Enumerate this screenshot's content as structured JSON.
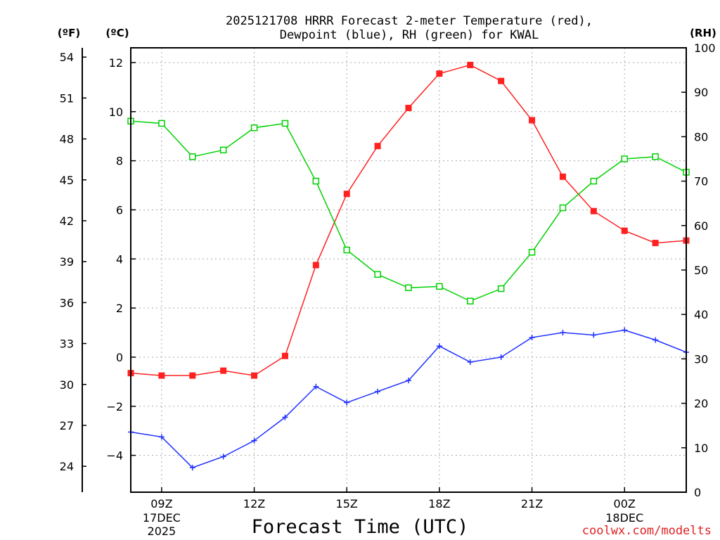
{
  "chart_data": {
    "type": "line",
    "title_line1": "2025121708 HRRR Forecast 2-meter Temperature (red),",
    "title_line2": "Dewpoint (blue), RH (green) for KWAL",
    "xlabel": "Forecast Time (UTC)",
    "unit_f": "(ºF)",
    "unit_c": "(ºC)",
    "unit_rh": "(RH)",
    "watermark": "coolwx.com/modelts",
    "x_hours": [
      8,
      9,
      10,
      11,
      12,
      13,
      14,
      15,
      16,
      17,
      18,
      19,
      20,
      21,
      22,
      23,
      24,
      25,
      26
    ],
    "x_range": [
      8,
      26
    ],
    "x_ticks": [
      {
        "hour": 9,
        "label": "09Z",
        "sub1": "17DEC",
        "sub2": "2025"
      },
      {
        "hour": 12,
        "label": "12Z",
        "sub1": "",
        "sub2": ""
      },
      {
        "hour": 15,
        "label": "15Z",
        "sub1": "",
        "sub2": ""
      },
      {
        "hour": 18,
        "label": "18Z",
        "sub1": "",
        "sub2": ""
      },
      {
        "hour": 21,
        "label": "21Z",
        "sub1": "",
        "sub2": ""
      },
      {
        "hour": 24,
        "label": "00Z",
        "sub1": "18DEC",
        "sub2": ""
      }
    ],
    "celsius_range": [
      -5.5,
      12.6
    ],
    "celsius_ticks": [
      "−4",
      "−2",
      "0",
      "2",
      "4",
      "6",
      "8",
      "10",
      "12"
    ],
    "celsius_tick_values": [
      -4,
      -2,
      0,
      2,
      4,
      6,
      8,
      10,
      12
    ],
    "fahrenheit_ticks": [
      "24",
      "27",
      "30",
      "33",
      "36",
      "39",
      "42",
      "45",
      "48",
      "51",
      "54"
    ],
    "fahrenheit_tick_values": [
      24,
      27,
      30,
      33,
      36,
      39,
      42,
      45,
      48,
      51,
      54
    ],
    "rh_range": [
      0,
      100
    ],
    "rh_ticks": [
      "0",
      "10",
      "20",
      "30",
      "40",
      "50",
      "60",
      "70",
      "80",
      "90",
      "100"
    ],
    "rh_tick_values": [
      0,
      10,
      20,
      30,
      40,
      50,
      60,
      70,
      80,
      90,
      100
    ],
    "series": [
      {
        "name": "2-meter Temperature",
        "axis": "celsius",
        "color": "#ff2020",
        "marker": "filled-square",
        "values": [
          -0.65,
          -0.75,
          -0.75,
          -0.55,
          -0.75,
          0.05,
          3.75,
          6.65,
          8.6,
          10.15,
          11.55,
          11.9,
          11.25,
          9.65,
          7.35,
          5.95,
          5.15,
          4.65,
          4.75
        ]
      },
      {
        "name": "Dewpoint",
        "axis": "celsius",
        "color": "#2030ff",
        "marker": "plus",
        "values": [
          -3.05,
          -3.25,
          -4.5,
          -4.05,
          -3.4,
          -2.45,
          -1.2,
          -1.85,
          -1.4,
          -0.95,
          0.45,
          -0.2,
          0.0,
          0.8,
          1.0,
          0.9,
          1.1,
          0.7,
          0.2
        ]
      },
      {
        "name": "RH",
        "axis": "rh",
        "color": "#00d000",
        "marker": "open-square",
        "values": [
          83.5,
          83.0,
          75.5,
          77.0,
          82.0,
          83.0,
          70.0,
          54.5,
          49.0,
          46.0,
          46.3,
          43.0,
          45.8,
          54.0,
          64.0,
          70.0,
          75.0,
          75.5,
          72.0
        ]
      }
    ]
  }
}
